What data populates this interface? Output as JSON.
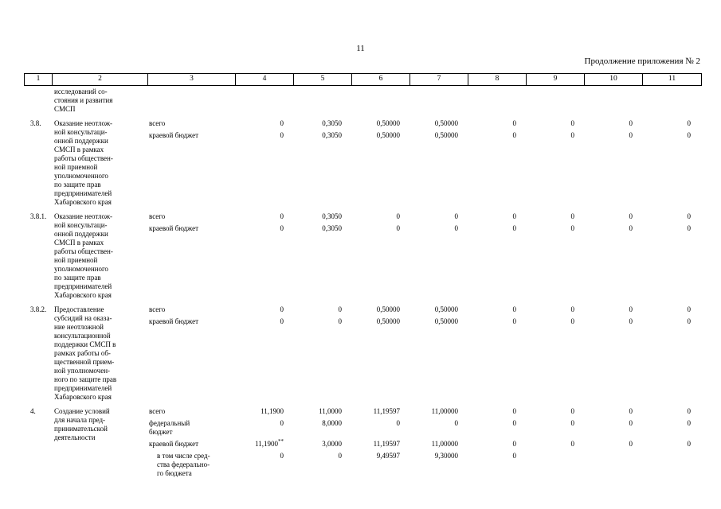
{
  "page": {
    "number": "11",
    "continuation_note": "Продолжение приложения № 2"
  },
  "table": {
    "column_headers": [
      "1",
      "2",
      "3",
      "4",
      "5",
      "6",
      "7",
      "8",
      "9",
      "10",
      "11"
    ],
    "rows": [
      {
        "num": "",
        "name_lines": [
          "исследований со-",
          "стояния и развития",
          "СМСП"
        ],
        "sub_rows": []
      },
      {
        "num": "3.8.",
        "name_lines": [
          "Оказание неотлож-",
          "ной консультаци-",
          "онной поддержки",
          "СМСП в рамках",
          "работы обществен-",
          "ной приемной",
          "уполномоченного",
          "по защите прав",
          "предпринимателей",
          "Хабаровского края"
        ],
        "sub_rows": [
          {
            "label_lines": [
              "всего"
            ],
            "indent": false,
            "values": [
              "0",
              "0,3050",
              "0,50000",
              "0,50000",
              "0",
              "0",
              "0",
              "0"
            ]
          },
          {
            "label_lines": [
              "краевой бюджет"
            ],
            "indent": false,
            "values": [
              "0",
              "0,3050",
              "0,50000",
              "0,50000",
              "0",
              "0",
              "0",
              "0"
            ]
          }
        ]
      },
      {
        "num": "3.8.1.",
        "name_lines": [
          "Оказание неотлож-",
          "ной консультаци-",
          "онной поддержки",
          "СМСП в рамках",
          "работы обществен-",
          "ной приемной",
          "уполномоченного",
          "по защите прав",
          "предпринимателей",
          "Хабаровского края"
        ],
        "sub_rows": [
          {
            "label_lines": [
              "всего"
            ],
            "indent": false,
            "values": [
              "0",
              "0,3050",
              "0",
              "0",
              "0",
              "0",
              "0",
              "0"
            ]
          },
          {
            "label_lines": [
              "краевой бюджет"
            ],
            "indent": false,
            "values": [
              "0",
              "0,3050",
              "0",
              "0",
              "0",
              "0",
              "0",
              "0"
            ]
          }
        ]
      },
      {
        "num": "3.8.2.",
        "name_lines": [
          "Предоставление",
          "субсидий на оказа-",
          "ние неотложной",
          "консультационной",
          "поддержки СМСП в",
          "рамках работы об-",
          "щественной прием-",
          "ной уполномочен-",
          "ного по защите прав",
          "предпринимателей",
          "Хабаровского края"
        ],
        "sub_rows": [
          {
            "label_lines": [
              "всего"
            ],
            "indent": false,
            "values": [
              "0",
              "0",
              "0,50000",
              "0,50000",
              "0",
              "0",
              "0",
              "0"
            ]
          },
          {
            "label_lines": [
              "краевой бюджет"
            ],
            "indent": false,
            "values": [
              "0",
              "0",
              "0,50000",
              "0,50000",
              "0",
              "0",
              "0",
              "0"
            ]
          }
        ]
      },
      {
        "num": "4.",
        "name_lines": [
          "Создание условий",
          "для начала пред-",
          "принимательской",
          "деятельности"
        ],
        "sub_rows": [
          {
            "label_lines": [
              "всего"
            ],
            "indent": false,
            "values": [
              "11,1900",
              "11,0000",
              "11,19597",
              "11,00000",
              "0",
              "0",
              "0",
              "0"
            ]
          },
          {
            "label_lines": [
              "федеральный",
              "бюджет"
            ],
            "indent": false,
            "values": [
              "0",
              "8,0000",
              "0",
              "0",
              "0",
              "0",
              "0",
              "0"
            ]
          },
          {
            "label_lines": [
              "краевой бюджет"
            ],
            "indent": false,
            "values": [
              "11,1900**",
              "3,0000",
              "11,19597",
              "11,00000",
              "0",
              "0",
              "0",
              "0"
            ]
          },
          {
            "label_lines": [
              "в том числе сред-",
              "ства федерально-",
              "го бюджета"
            ],
            "indent": true,
            "values": [
              "0",
              "0",
              "9,49597",
              "9,30000",
              "0",
              "",
              "",
              ""
            ]
          }
        ]
      }
    ]
  }
}
